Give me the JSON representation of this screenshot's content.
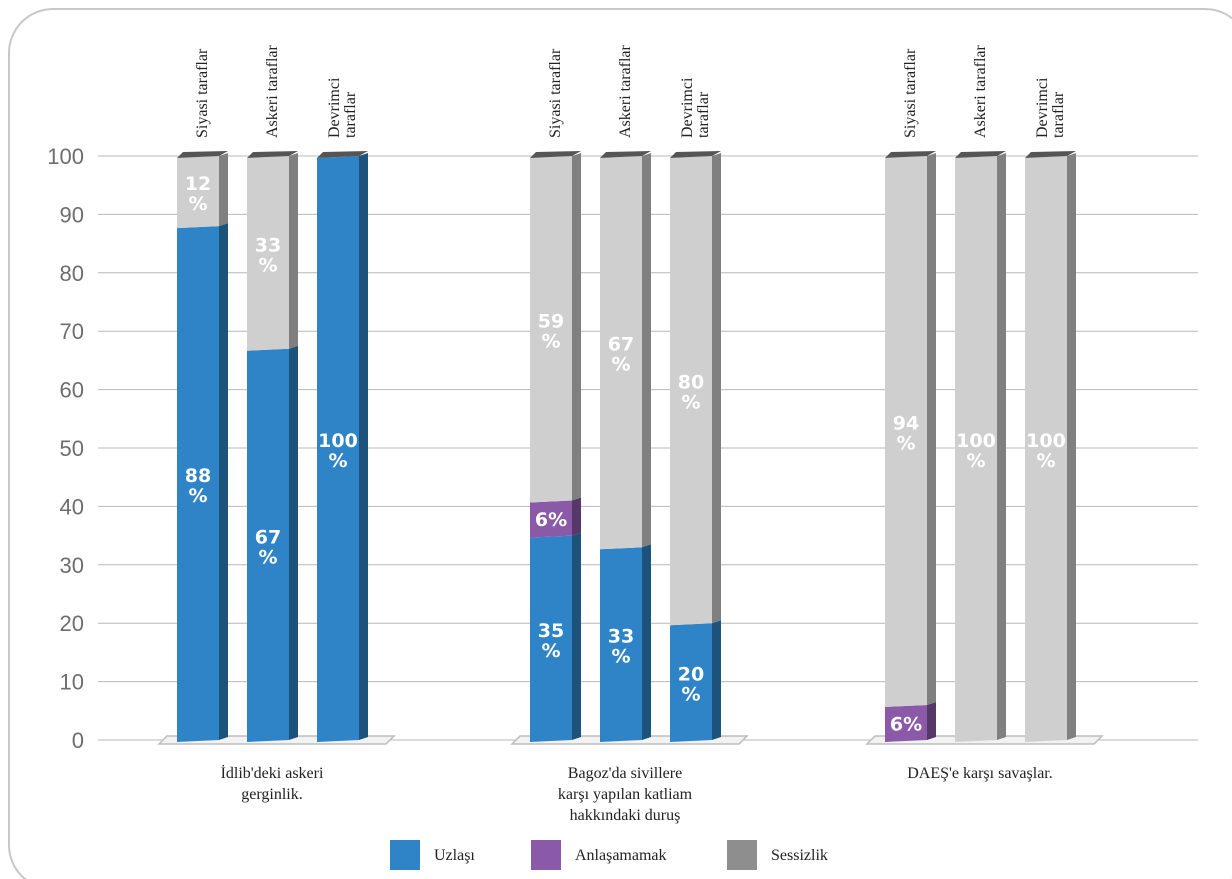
{
  "chart_data": {
    "type": "bar",
    "stacked": true,
    "three_d": true,
    "ylim": [
      0,
      100
    ],
    "yticks": [
      0,
      10,
      20,
      30,
      40,
      50,
      60,
      70,
      80,
      90,
      100
    ],
    "grid": true,
    "legend_position": "bottom",
    "colors": {
      "Uzlaşı": "#2e84c6",
      "Anlaşamamak": "#8a5aa8",
      "Sessizlik": "#cfcfcf"
    },
    "groups": [
      {
        "label": [
          "İdlib'deki askeri",
          "gerginlik."
        ],
        "bars": [
          {
            "category": [
              "Siyasi taraflar"
            ],
            "segments": [
              {
                "series": "Uzlaşı",
                "value": 88,
                "label": "88 %"
              },
              {
                "series": "Sessizlik",
                "value": 12,
                "label": "12 %"
              }
            ]
          },
          {
            "category": [
              "Askeri taraflar"
            ],
            "segments": [
              {
                "series": "Uzlaşı",
                "value": 67,
                "label": "67 %"
              },
              {
                "series": "Sessizlik",
                "value": 33,
                "label": "33 %"
              }
            ]
          },
          {
            "category": [
              "Devrimci",
              "taraflar"
            ],
            "segments": [
              {
                "series": "Uzlaşı",
                "value": 100,
                "label": "100 %"
              }
            ]
          }
        ]
      },
      {
        "label": [
          "Bagoz'da sivillere",
          "karşı yapılan katliam",
          "hakkındaki duruş"
        ],
        "bars": [
          {
            "category": [
              "Siyasi taraflar"
            ],
            "segments": [
              {
                "series": "Uzlaşı",
                "value": 35,
                "label": "35 %"
              },
              {
                "series": "Anlaşamamak",
                "value": 6,
                "label": "6%"
              },
              {
                "series": "Sessizlik",
                "value": 59,
                "label": "59 %"
              }
            ]
          },
          {
            "category": [
              "Askeri taraflar"
            ],
            "segments": [
              {
                "series": "Uzlaşı",
                "value": 33,
                "label": "33 %"
              },
              {
                "series": "Sessizlik",
                "value": 67,
                "label": "67 %"
              }
            ]
          },
          {
            "category": [
              "Devrimci",
              "taraflar"
            ],
            "segments": [
              {
                "series": "Uzlaşı",
                "value": 20,
                "label": "20 %"
              },
              {
                "series": "Sessizlik",
                "value": 80,
                "label": "80 %"
              }
            ]
          }
        ]
      },
      {
        "label": [
          "DAEŞ'e karşı savaşlar."
        ],
        "bars": [
          {
            "category": [
              "Siyasi taraflar"
            ],
            "segments": [
              {
                "series": "Anlaşamamak",
                "value": 6,
                "label": "6%"
              },
              {
                "series": "Sessizlik",
                "value": 94,
                "label": "94 %"
              }
            ]
          },
          {
            "category": [
              "Askeri taraflar"
            ],
            "segments": [
              {
                "series": "Sessizlik",
                "value": 100,
                "label": "100 %"
              }
            ]
          },
          {
            "category": [
              "Devrimci",
              "taraflar"
            ],
            "segments": [
              {
                "series": "Sessizlik",
                "value": 100,
                "label": "100 %"
              }
            ]
          }
        ]
      }
    ],
    "legend": [
      {
        "label": "Uzlaşı",
        "color": "#2e84c6"
      },
      {
        "label": "Anlaşamamak",
        "color": "#8a5aa8"
      },
      {
        "label": "Sessizlik",
        "color": "#8e8e8e"
      }
    ]
  }
}
